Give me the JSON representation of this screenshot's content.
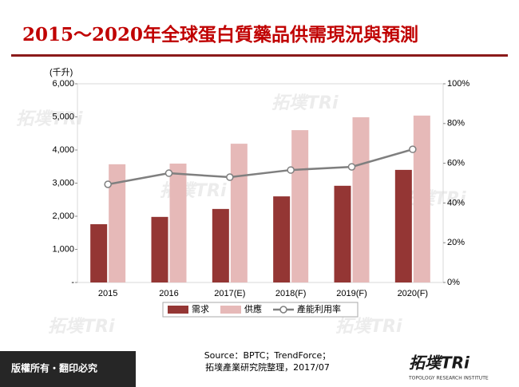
{
  "chart_data": {
    "type": "bar",
    "title": "2015～2020年全球蛋白質藥品供需現況與預測",
    "y_label": "(千升)",
    "categories": [
      "2015",
      "2016",
      "2017(E)",
      "2018(F)",
      "2019(F)",
      "2020(F)"
    ],
    "series": [
      {
        "name": "需求",
        "color": "#943634",
        "values": [
          1760,
          1980,
          2220,
          2600,
          2920,
          3400
        ]
      },
      {
        "name": "供應",
        "color": "#e6b9b8",
        "values": [
          3570,
          3590,
          4190,
          4600,
          4990,
          5040
        ]
      },
      {
        "name": "產能利用率",
        "type": "line",
        "axis": "y2",
        "color": "#7f7f7f",
        "values": [
          49.4,
          55,
          53,
          56.6,
          58.2,
          67
        ]
      }
    ],
    "ylim": [
      0,
      6000
    ],
    "yticks": [
      {
        "value": 0,
        "label": "-"
      },
      {
        "value": 1000,
        "label": "1,000"
      },
      {
        "value": 2000,
        "label": "2,000"
      },
      {
        "value": 3000,
        "label": "3,000"
      },
      {
        "value": 4000,
        "label": "4,000"
      },
      {
        "value": 5000,
        "label": "5,000"
      },
      {
        "value": 6000,
        "label": "6,000"
      }
    ],
    "y2lim": [
      0,
      100
    ],
    "y2ticks": [
      {
        "value": 0,
        "label": "0%"
      },
      {
        "value": 20,
        "label": "20%"
      },
      {
        "value": 40,
        "label": "40%"
      },
      {
        "value": 60,
        "label": "60%"
      },
      {
        "value": 80,
        "label": "80%"
      },
      {
        "value": 100,
        "label": "100%"
      }
    ],
    "grid": false,
    "legend": "bottom"
  },
  "footer": {
    "copyright": "版權所有・翻印必究",
    "source": [
      "Source：BPTC；TrendForce；",
      "拓墣產業研究院整理，2017/07"
    ]
  },
  "logo": {
    "name": "拓墣TRi",
    "tagline": "TOPOLOGY RESEARCH INSTITUTE"
  }
}
